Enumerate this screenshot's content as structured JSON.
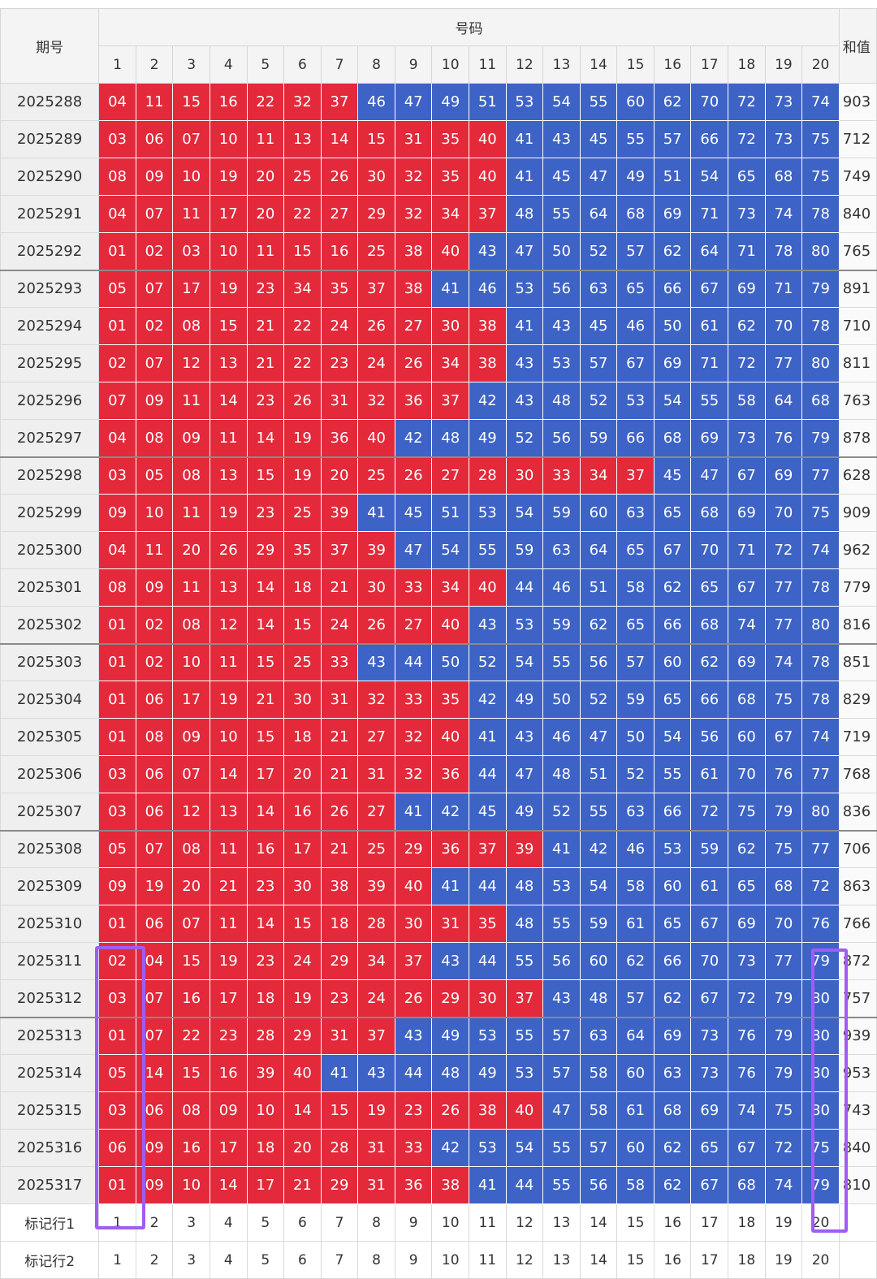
{
  "header": {
    "period_label": "期号",
    "numbers_label": "号码",
    "sum_label": "和值",
    "columns": [
      "1",
      "2",
      "3",
      "4",
      "5",
      "6",
      "7",
      "8",
      "9",
      "10",
      "11",
      "12",
      "13",
      "14",
      "15",
      "16",
      "17",
      "18",
      "19",
      "20"
    ]
  },
  "colors": {
    "red": "#e3293a",
    "blue": "#3d63c6",
    "highlight": "#a05cf5"
  },
  "rows": [
    {
      "period": "2025288",
      "nums": [
        "04",
        "11",
        "15",
        "16",
        "22",
        "32",
        "37",
        "46",
        "47",
        "49",
        "51",
        "53",
        "54",
        "55",
        "60",
        "62",
        "70",
        "72",
        "73",
        "74"
      ],
      "red_count": 7,
      "sum": "903"
    },
    {
      "period": "2025289",
      "nums": [
        "03",
        "06",
        "07",
        "10",
        "11",
        "13",
        "14",
        "15",
        "31",
        "35",
        "40",
        "41",
        "43",
        "45",
        "55",
        "57",
        "66",
        "72",
        "73",
        "75"
      ],
      "red_count": 11,
      "sum": "712"
    },
    {
      "period": "2025290",
      "nums": [
        "08",
        "09",
        "10",
        "19",
        "20",
        "25",
        "26",
        "30",
        "32",
        "35",
        "40",
        "41",
        "45",
        "47",
        "49",
        "51",
        "54",
        "65",
        "68",
        "75"
      ],
      "red_count": 11,
      "sum": "749"
    },
    {
      "period": "2025291",
      "nums": [
        "04",
        "07",
        "11",
        "17",
        "20",
        "22",
        "27",
        "29",
        "32",
        "34",
        "37",
        "48",
        "55",
        "64",
        "68",
        "69",
        "71",
        "73",
        "74",
        "78"
      ],
      "red_count": 11,
      "sum": "840"
    },
    {
      "period": "2025292",
      "nums": [
        "01",
        "02",
        "03",
        "10",
        "11",
        "15",
        "16",
        "25",
        "38",
        "40",
        "43",
        "47",
        "50",
        "52",
        "57",
        "62",
        "64",
        "71",
        "78",
        "80"
      ],
      "red_count": 10,
      "sum": "765"
    },
    {
      "period": "2025293",
      "nums": [
        "05",
        "07",
        "17",
        "19",
        "23",
        "34",
        "35",
        "37",
        "38",
        "41",
        "46",
        "53",
        "56",
        "63",
        "65",
        "66",
        "67",
        "69",
        "71",
        "79"
      ],
      "red_count": 9,
      "sum": "891"
    },
    {
      "period": "2025294",
      "nums": [
        "01",
        "02",
        "08",
        "15",
        "21",
        "22",
        "24",
        "26",
        "27",
        "30",
        "38",
        "41",
        "43",
        "45",
        "46",
        "50",
        "61",
        "62",
        "70",
        "78"
      ],
      "red_count": 11,
      "sum": "710"
    },
    {
      "period": "2025295",
      "nums": [
        "02",
        "07",
        "12",
        "13",
        "21",
        "22",
        "23",
        "24",
        "26",
        "34",
        "38",
        "43",
        "53",
        "57",
        "67",
        "69",
        "71",
        "72",
        "77",
        "80"
      ],
      "red_count": 11,
      "sum": "811"
    },
    {
      "period": "2025296",
      "nums": [
        "07",
        "09",
        "11",
        "14",
        "23",
        "26",
        "31",
        "32",
        "36",
        "37",
        "42",
        "43",
        "48",
        "52",
        "53",
        "54",
        "55",
        "58",
        "64",
        "68"
      ],
      "red_count": 10,
      "sum": "763"
    },
    {
      "period": "2025297",
      "nums": [
        "04",
        "08",
        "09",
        "11",
        "14",
        "19",
        "36",
        "40",
        "42",
        "48",
        "49",
        "52",
        "56",
        "59",
        "66",
        "68",
        "69",
        "73",
        "76",
        "79"
      ],
      "red_count": 8,
      "sum": "878"
    },
    {
      "period": "2025298",
      "nums": [
        "03",
        "05",
        "08",
        "13",
        "15",
        "19",
        "20",
        "25",
        "26",
        "27",
        "28",
        "30",
        "33",
        "34",
        "37",
        "45",
        "47",
        "67",
        "69",
        "77"
      ],
      "red_count": 15,
      "sum": "628"
    },
    {
      "period": "2025299",
      "nums": [
        "09",
        "10",
        "11",
        "19",
        "23",
        "25",
        "39",
        "41",
        "45",
        "51",
        "53",
        "54",
        "59",
        "60",
        "63",
        "65",
        "68",
        "69",
        "70",
        "75"
      ],
      "red_count": 7,
      "sum": "909"
    },
    {
      "period": "2025300",
      "nums": [
        "04",
        "11",
        "20",
        "26",
        "29",
        "35",
        "37",
        "39",
        "47",
        "54",
        "55",
        "59",
        "63",
        "64",
        "65",
        "67",
        "70",
        "71",
        "72",
        "74"
      ],
      "red_count": 8,
      "sum": "962"
    },
    {
      "period": "2025301",
      "nums": [
        "08",
        "09",
        "11",
        "13",
        "14",
        "18",
        "21",
        "30",
        "33",
        "34",
        "40",
        "44",
        "46",
        "51",
        "58",
        "62",
        "65",
        "67",
        "77",
        "78"
      ],
      "red_count": 11,
      "sum": "779"
    },
    {
      "period": "2025302",
      "nums": [
        "01",
        "02",
        "08",
        "12",
        "14",
        "15",
        "24",
        "26",
        "27",
        "40",
        "43",
        "53",
        "59",
        "62",
        "65",
        "66",
        "68",
        "74",
        "77",
        "80"
      ],
      "red_count": 10,
      "sum": "816"
    },
    {
      "period": "2025303",
      "nums": [
        "01",
        "02",
        "10",
        "11",
        "15",
        "25",
        "33",
        "43",
        "44",
        "50",
        "52",
        "54",
        "55",
        "56",
        "57",
        "60",
        "62",
        "69",
        "74",
        "78"
      ],
      "red_count": 7,
      "sum": "851"
    },
    {
      "period": "2025304",
      "nums": [
        "01",
        "06",
        "17",
        "19",
        "21",
        "30",
        "31",
        "32",
        "33",
        "35",
        "42",
        "49",
        "50",
        "52",
        "59",
        "65",
        "66",
        "68",
        "75",
        "78"
      ],
      "red_count": 10,
      "sum": "829"
    },
    {
      "period": "2025305",
      "nums": [
        "01",
        "08",
        "09",
        "10",
        "15",
        "18",
        "21",
        "27",
        "32",
        "40",
        "41",
        "43",
        "46",
        "47",
        "50",
        "54",
        "56",
        "60",
        "67",
        "74"
      ],
      "red_count": 10,
      "sum": "719"
    },
    {
      "period": "2025306",
      "nums": [
        "03",
        "06",
        "07",
        "14",
        "17",
        "20",
        "21",
        "31",
        "32",
        "36",
        "44",
        "47",
        "48",
        "51",
        "52",
        "55",
        "61",
        "70",
        "76",
        "77"
      ],
      "red_count": 10,
      "sum": "768"
    },
    {
      "period": "2025307",
      "nums": [
        "03",
        "06",
        "12",
        "13",
        "14",
        "16",
        "26",
        "27",
        "41",
        "42",
        "45",
        "49",
        "52",
        "55",
        "63",
        "66",
        "72",
        "75",
        "79",
        "80"
      ],
      "red_count": 8,
      "sum": "836"
    },
    {
      "period": "2025308",
      "nums": [
        "05",
        "07",
        "08",
        "11",
        "16",
        "17",
        "21",
        "25",
        "29",
        "36",
        "37",
        "39",
        "41",
        "42",
        "46",
        "53",
        "59",
        "62",
        "75",
        "77"
      ],
      "red_count": 12,
      "sum": "706"
    },
    {
      "period": "2025309",
      "nums": [
        "09",
        "19",
        "20",
        "21",
        "23",
        "30",
        "38",
        "39",
        "40",
        "41",
        "44",
        "48",
        "53",
        "54",
        "58",
        "60",
        "61",
        "65",
        "68",
        "72"
      ],
      "red_count": 9,
      "sum": "863"
    },
    {
      "period": "2025310",
      "nums": [
        "01",
        "06",
        "07",
        "11",
        "14",
        "15",
        "18",
        "28",
        "30",
        "31",
        "35",
        "48",
        "55",
        "59",
        "61",
        "65",
        "67",
        "69",
        "70",
        "76"
      ],
      "red_count": 11,
      "sum": "766"
    },
    {
      "period": "2025311",
      "nums": [
        "02",
        "04",
        "15",
        "19",
        "23",
        "24",
        "29",
        "34",
        "37",
        "43",
        "44",
        "55",
        "56",
        "60",
        "62",
        "66",
        "70",
        "73",
        "77",
        "79"
      ],
      "red_count": 9,
      "sum": "872"
    },
    {
      "period": "2025312",
      "nums": [
        "03",
        "07",
        "16",
        "17",
        "18",
        "19",
        "23",
        "24",
        "26",
        "29",
        "30",
        "37",
        "43",
        "48",
        "57",
        "62",
        "67",
        "72",
        "79",
        "80"
      ],
      "red_count": 12,
      "sum": "757"
    },
    {
      "period": "2025313",
      "nums": [
        "01",
        "07",
        "22",
        "23",
        "28",
        "29",
        "31",
        "37",
        "43",
        "49",
        "53",
        "55",
        "57",
        "63",
        "64",
        "69",
        "73",
        "76",
        "79",
        "80"
      ],
      "red_count": 8,
      "sum": "939"
    },
    {
      "period": "2025314",
      "nums": [
        "05",
        "14",
        "15",
        "16",
        "39",
        "40",
        "41",
        "43",
        "44",
        "48",
        "49",
        "53",
        "57",
        "58",
        "60",
        "63",
        "73",
        "76",
        "79",
        "80"
      ],
      "red_count": 6,
      "sum": "953"
    },
    {
      "period": "2025315",
      "nums": [
        "03",
        "06",
        "08",
        "09",
        "10",
        "14",
        "15",
        "19",
        "23",
        "26",
        "38",
        "40",
        "47",
        "58",
        "61",
        "68",
        "69",
        "74",
        "75",
        "80"
      ],
      "red_count": 12,
      "sum": "743"
    },
    {
      "period": "2025316",
      "nums": [
        "06",
        "09",
        "16",
        "17",
        "18",
        "20",
        "28",
        "31",
        "33",
        "42",
        "53",
        "54",
        "55",
        "57",
        "60",
        "62",
        "65",
        "67",
        "72",
        "75"
      ],
      "red_count": 9,
      "sum": "840"
    },
    {
      "period": "2025317",
      "nums": [
        "01",
        "09",
        "10",
        "14",
        "17",
        "21",
        "29",
        "31",
        "36",
        "38",
        "41",
        "44",
        "55",
        "56",
        "58",
        "62",
        "67",
        "68",
        "74",
        "79"
      ],
      "red_count": 10,
      "sum": "810"
    }
  ],
  "mark_rows": [
    {
      "label": "标记行1",
      "values": [
        "1",
        "2",
        "3",
        "4",
        "5",
        "6",
        "7",
        "8",
        "9",
        "10",
        "11",
        "12",
        "13",
        "14",
        "15",
        "16",
        "17",
        "18",
        "19",
        "20"
      ]
    },
    {
      "label": "标记行2",
      "values": [
        "1",
        "2",
        "3",
        "4",
        "5",
        "6",
        "7",
        "8",
        "9",
        "10",
        "11",
        "12",
        "13",
        "14",
        "15",
        "16",
        "17",
        "18",
        "19",
        "20"
      ]
    }
  ]
}
